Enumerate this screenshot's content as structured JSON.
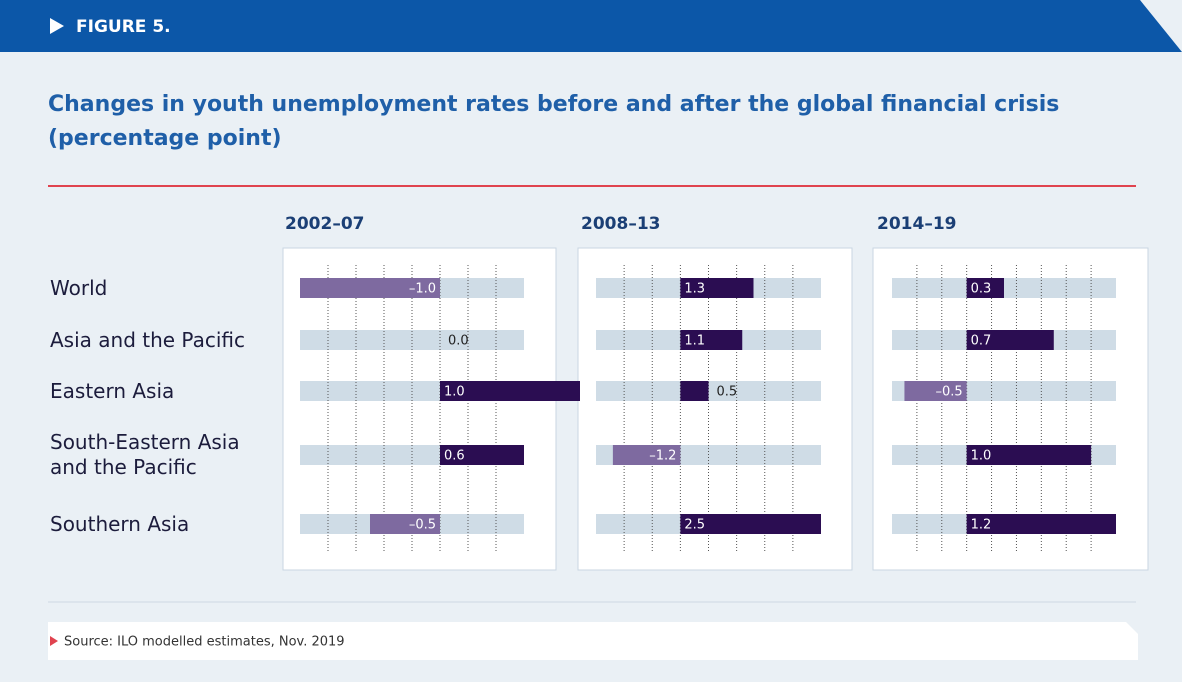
{
  "header": "FIGURE 5.",
  "title": [
    "Changes in youth unemployment rates before and after the global financial crisis",
    "(percentage point)"
  ],
  "categories": [
    "World",
    "Asia and the Pacific",
    "Eastern Asia",
    "South-Eastern Asia and the Pacific",
    "Southern Asia"
  ],
  "chart_data": [
    {
      "type": "bar",
      "title": "2002–07",
      "values": [
        -1.0,
        0.0,
        1.0,
        0.6,
        -0.5
      ],
      "value_labels": [
        "–1.0",
        "0.0",
        "1.0",
        "0.6",
        "–0.5"
      ],
      "xlim": [
        -1.0,
        0.6
      ],
      "xticks": [
        -0.8,
        -0.6,
        -0.4,
        -0.2,
        0,
        0.2,
        0.4
      ],
      "grid": true,
      "colors": {
        "positive": "#2b0d52",
        "negative": "#7e6aa0",
        "track": "#cfdce6"
      }
    },
    {
      "type": "bar",
      "title": "2008–13",
      "values": [
        1.3,
        1.1,
        0.5,
        -1.2,
        2.5
      ],
      "value_labels": [
        "1.3",
        "1.1",
        "0.5",
        "–1.2",
        "2.5"
      ],
      "xlim": [
        -1.5,
        2.5
      ],
      "xticks": [
        -1.0,
        -0.5,
        0,
        0.5,
        1.0,
        1.5,
        2.0
      ],
      "grid": true,
      "colors": {
        "positive": "#2b0d52",
        "negative": "#7e6aa0",
        "track": "#cfdce6"
      }
    },
    {
      "type": "bar",
      "title": "2014–19",
      "values": [
        0.3,
        0.7,
        -0.5,
        1.0,
        1.2
      ],
      "value_labels": [
        "0.3",
        "0.7",
        "–0.5",
        "1.0",
        "1.2"
      ],
      "xlim": [
        -0.6,
        1.2
      ],
      "xticks": [
        -0.4,
        -0.2,
        0,
        0.2,
        0.4,
        0.6,
        0.8,
        1.0
      ],
      "grid": true,
      "colors": {
        "positive": "#2b0d52",
        "negative": "#7e6aa0",
        "track": "#cfdce6"
      }
    }
  ],
  "source": "Source: ILO modelled estimates, Nov. 2019"
}
